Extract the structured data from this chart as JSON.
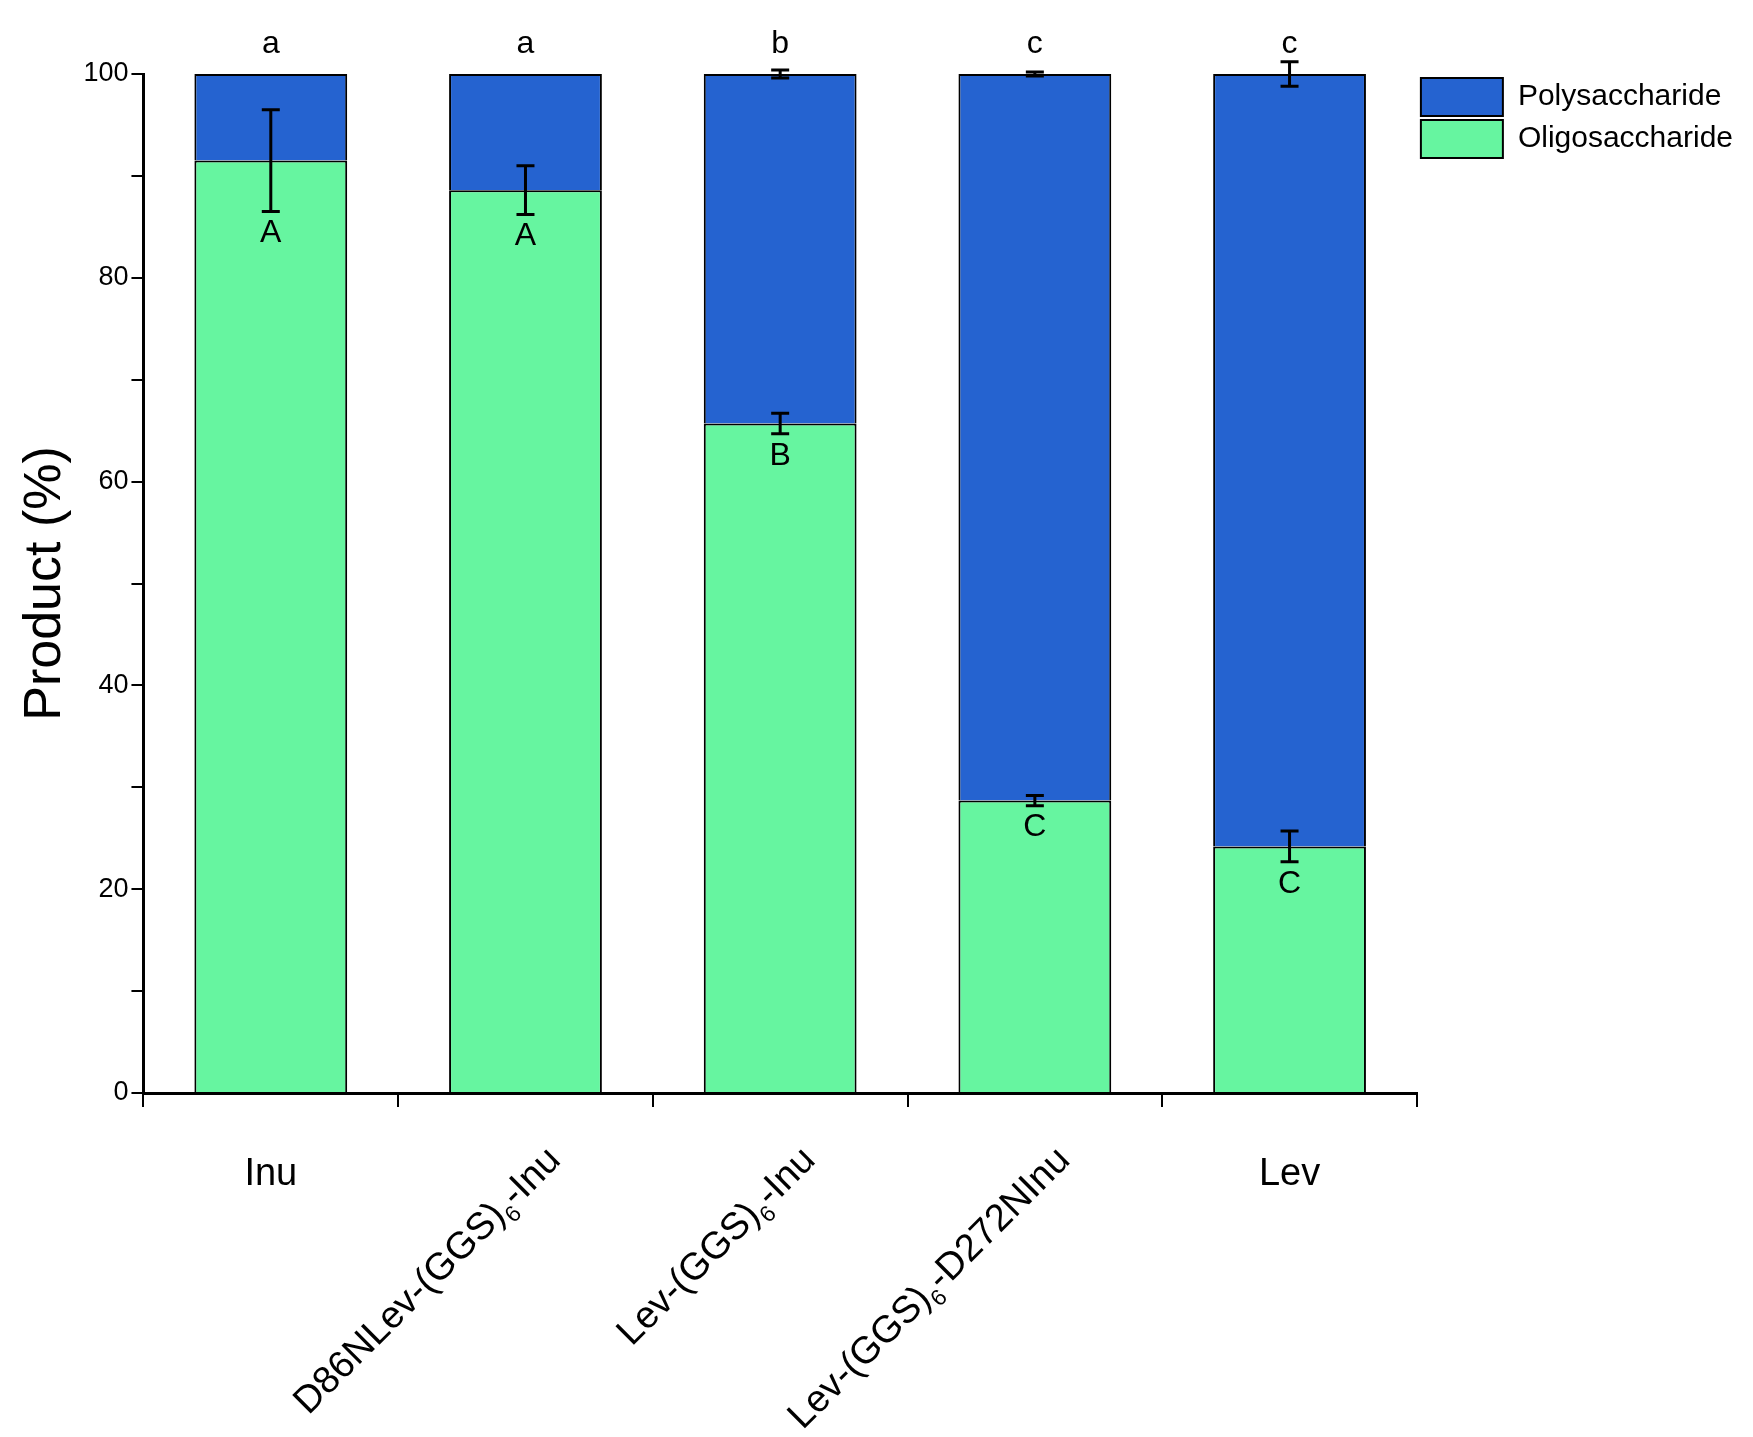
{
  "chart_data": {
    "type": "bar",
    "stacked": true,
    "ylabel": "Product (%)",
    "categories": [
      "Inu",
      "D86NLev-(GGS)$_{6}$-Inu",
      "Lev-(GGS)$_{6}$-Inu",
      "Lev-(GGS)$_{6}$-D272NInu",
      "Lev"
    ],
    "series": [
      {
        "name": "Oligosaccharide",
        "color": "#66f5a0",
        "values": [
          91.5,
          88.6,
          65.7,
          28.7,
          24.2
        ],
        "errors": [
          5,
          2.4,
          1,
          0.5,
          1.5
        ]
      },
      {
        "name": "Polysaccharide",
        "color": "#2563d0",
        "values": [
          8.5,
          11.4,
          34.3,
          71.3,
          75.8
        ],
        "errors": [
          null,
          null,
          0.4,
          0.2,
          1.2
        ]
      }
    ],
    "ylim": [
      0,
      100
    ],
    "yticks": [
      0,
      {
        "value": 10,
        "label": null
      },
      20,
      {
        "value": 30,
        "label": null
      },
      40,
      {
        "value": 50,
        "label": null
      },
      60,
      {
        "value": 70,
        "label": null
      },
      80,
      {
        "value": 90,
        "label": null
      },
      100
    ],
    "legend": "right",
    "grid": false,
    "annotations": [
      {
        "text": "a",
        "x": "Inu",
        "y": 100
      },
      {
        "text": "a",
        "x": "D86NLev-(GGS)$_{6}$-Inu",
        "y": 100
      },
      {
        "text": "b",
        "x": "Lev-(GGS)$_{6}$-Inu",
        "y": 100
      },
      {
        "text": "c",
        "x": "Lev-(GGS)$_{6}$-D272NInu",
        "y": 100
      },
      {
        "text": "c",
        "x": "Lev",
        "y": 100
      },
      {
        "text": "A",
        "x": "Inu",
        "y": 91.5
      },
      {
        "text": "A",
        "x": "D86NLev-(GGS)$_{6}$-Inu",
        "y": 88.6
      },
      {
        "text": "B",
        "x": "Lev-(GGS)$_{6}$-Inu",
        "y": 65.7
      },
      {
        "text": "C",
        "x": "Lev-(GGS)$_{6}$-D272NInu",
        "y": 28.7
      },
      {
        "text": "C",
        "x": "Lev",
        "y": 24.2
      }
    ]
  }
}
